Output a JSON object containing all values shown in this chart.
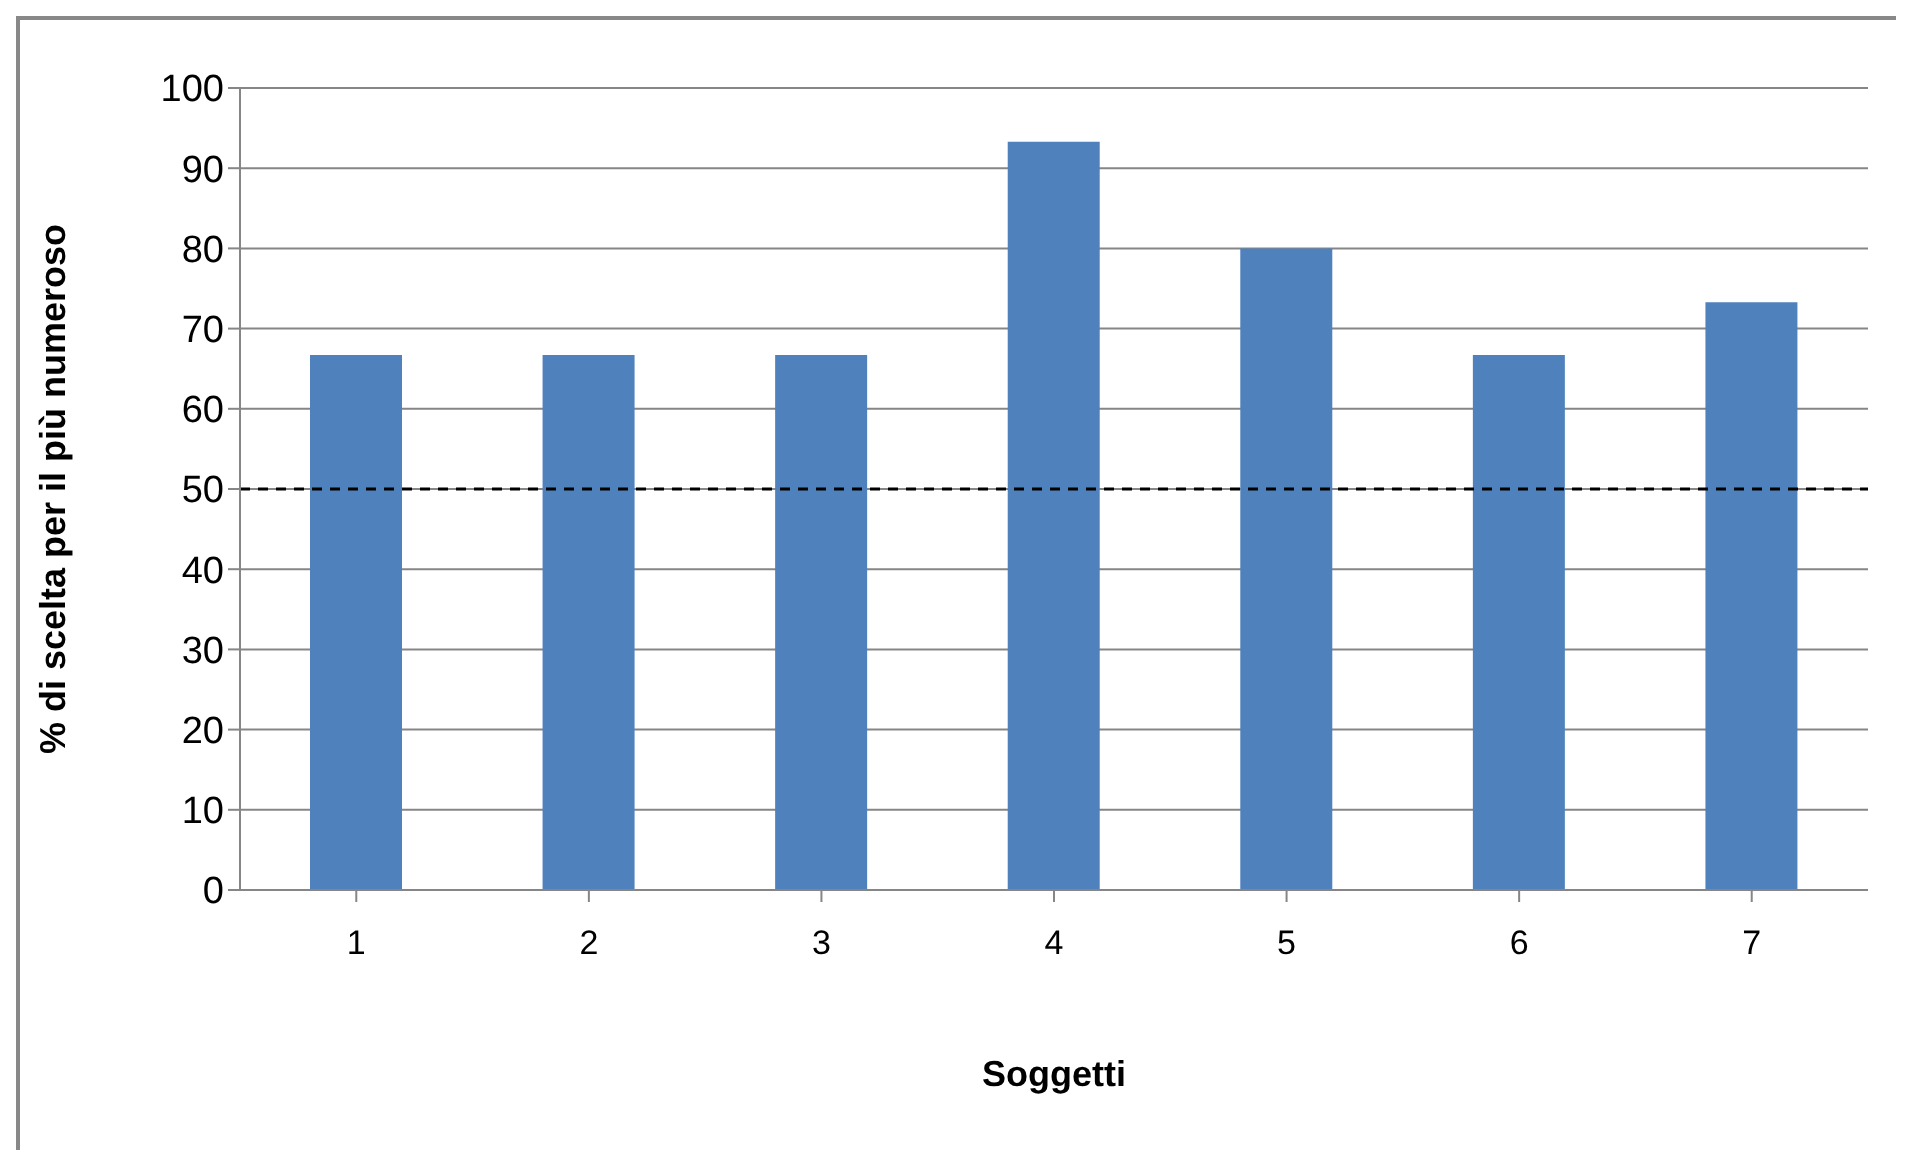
{
  "chart_data": {
    "type": "bar",
    "xlabel": "Soggetti",
    "ylabel": "% di scelta per il più numeroso",
    "categories": [
      "1",
      "2",
      "3",
      "4",
      "5",
      "6",
      "7"
    ],
    "values": [
      66.7,
      66.7,
      66.7,
      93.3,
      80,
      66.7,
      73.3
    ],
    "color": "#4f81bd",
    "ylim": [
      0,
      100
    ],
    "yticks": [
      0,
      10,
      20,
      30,
      40,
      50,
      60,
      70,
      80,
      90,
      100
    ],
    "grid": "y",
    "ref_lines": [
      {
        "axis": "y",
        "value": 50,
        "color": "#000000",
        "line_style": "dashed"
      }
    ]
  }
}
